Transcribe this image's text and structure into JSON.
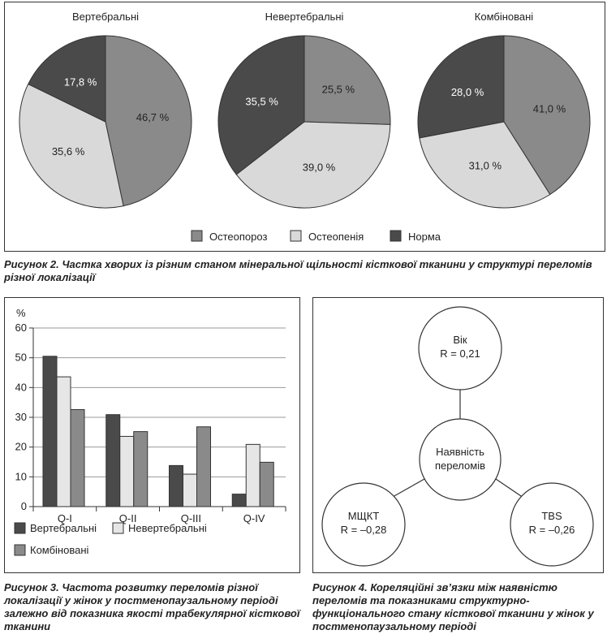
{
  "colors": {
    "osteoporosis": "#8a8a8a",
    "osteopenia": "#d9d9d9",
    "norm": "#4a4a4a",
    "stroke": "#333333"
  },
  "figure2": {
    "caption": "Рисунок 2. Частка хворих із різним станом мінеральної щільності кісткової тканини у структурі переломів різної локалізації"
  },
  "figure3": {
    "caption": "Рисунок 3. Частота розвитку переломів різної локалізації у жінок у постменопаузальному періоді залежно від показника якості трабекулярної кісткової тканини"
  },
  "figure4": {
    "caption": "Рисунок 4. Кореляційні зв’язки між наявністю переломів та показниками структурно-функціонального стану кісткової тканини у жінок у постменопаузальному періоді",
    "center": {
      "line1": "Наявність",
      "line2": "переломів"
    },
    "nodes": [
      {
        "name": "Вік",
        "r": "R = 0,21"
      },
      {
        "name": "МЩКТ",
        "r": "R = –0,28"
      },
      {
        "name": "TBS",
        "r": "R = –0,26"
      }
    ]
  },
  "chart_data": [
    {
      "type": "pie",
      "title": "Вертебральні",
      "slices": [
        {
          "name": "Остеопороз",
          "value": 46.7,
          "label": "46,7 %",
          "color": "#8a8a8a"
        },
        {
          "name": "Остеопенія",
          "value": 35.6,
          "label": "35,6 %",
          "color": "#d9d9d9"
        },
        {
          "name": "Норма",
          "value": 17.8,
          "label": "17,8 %",
          "color": "#4a4a4a"
        }
      ]
    },
    {
      "type": "pie",
      "title": "Невертебральні",
      "slices": [
        {
          "name": "Остеопороз",
          "value": 25.5,
          "label": "25,5 %",
          "color": "#8a8a8a"
        },
        {
          "name": "Остеопенія",
          "value": 39.0,
          "label": "39,0 %",
          "color": "#d9d9d9"
        },
        {
          "name": "Норма",
          "value": 35.5,
          "label": "35,5 %",
          "color": "#4a4a4a"
        }
      ]
    },
    {
      "type": "pie",
      "title": "Комбіновані",
      "slices": [
        {
          "name": "Остеопороз",
          "value": 41.0,
          "label": "41,0 %",
          "color": "#8a8a8a"
        },
        {
          "name": "Остеопенія",
          "value": 31.0,
          "label": "31,0 %",
          "color": "#d9d9d9"
        },
        {
          "name": "Норма",
          "value": 28.0,
          "label": "28,0 %",
          "color": "#4a4a4a"
        }
      ],
      "legend": [
        {
          "name": "Остеопороз",
          "color": "#8a8a8a"
        },
        {
          "name": "Остеопенія",
          "color": "#d9d9d9"
        },
        {
          "name": "Норма",
          "color": "#4a4a4a"
        }
      ],
      "legend_position": "bottom"
    },
    {
      "type": "bar",
      "ylabel": "%",
      "ylim": [
        0,
        60
      ],
      "yticks": [
        0,
        10,
        20,
        30,
        40,
        50,
        60
      ],
      "grid": true,
      "categories": [
        "Q-I",
        "Q-II",
        "Q-III",
        "Q-IV"
      ],
      "series": [
        {
          "name": "Вертебральні",
          "color": "#4a4a4a",
          "values": [
            50.5,
            30.9,
            13.8,
            4.2
          ]
        },
        {
          "name": "Невертебральні",
          "color": "#e6e6e6",
          "values": [
            43.6,
            23.6,
            10.9,
            20.9
          ]
        },
        {
          "name": "Комбіновані",
          "color": "#8a8a8a",
          "values": [
            32.6,
            25.2,
            26.8,
            14.9
          ]
        }
      ],
      "legend_position": "bottom"
    }
  ]
}
